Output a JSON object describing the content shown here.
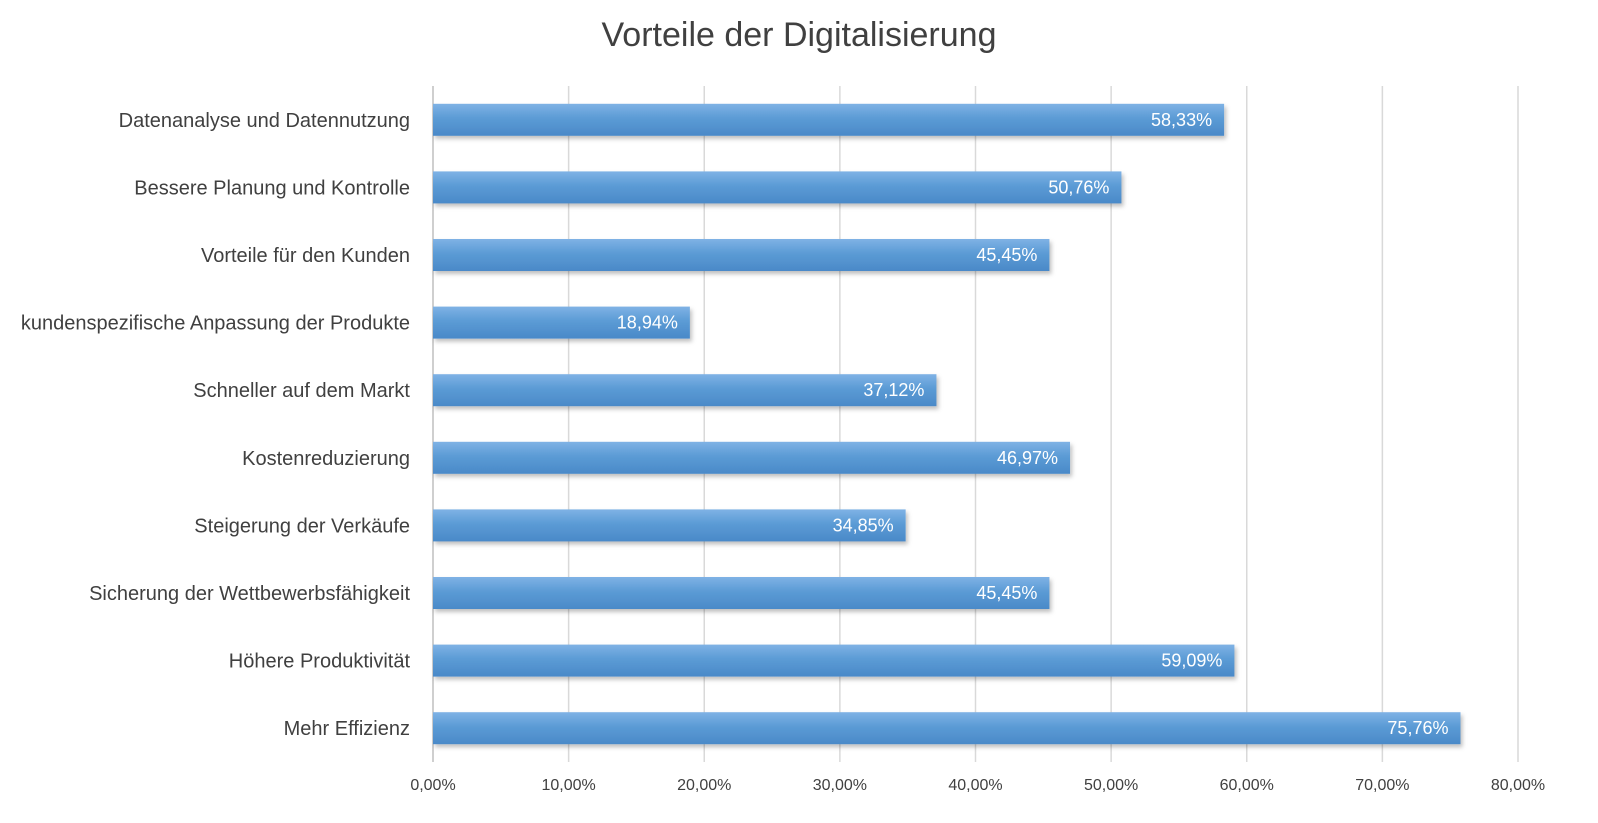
{
  "chart_data": {
    "type": "bar",
    "orientation": "horizontal",
    "title": "Vorteile der Digitalisierung",
    "xlabel": "",
    "ylabel": "",
    "categories": [
      "Datenanalyse und Datennutzung",
      "Bessere Planung und Kontrolle",
      "Vorteile für den Kunden",
      "kundenspezifische Anpassung der Produkte",
      "Schneller auf dem Markt",
      "Kostenreduzierung",
      "Steigerung der Verkäufe",
      "Sicherung der Wettbewerbsfähigkeit",
      "Höhere Produktivität",
      "Mehr Effizienz"
    ],
    "values": [
      58.33,
      50.76,
      45.45,
      18.94,
      37.12,
      46.97,
      34.85,
      45.45,
      59.09,
      75.76
    ],
    "value_labels": [
      "58,33%",
      "50,76%",
      "45,45%",
      "18,94%",
      "37,12%",
      "46,97%",
      "34,85%",
      "45,45%",
      "59,09%",
      "75,76%"
    ],
    "xlim": [
      0,
      80
    ],
    "x_ticks": [
      0,
      10,
      20,
      30,
      40,
      50,
      60,
      70,
      80
    ],
    "x_tick_labels": [
      "0,00%",
      "10,00%",
      "20,00%",
      "30,00%",
      "40,00%",
      "50,00%",
      "60,00%",
      "70,00%",
      "80,00%"
    ],
    "grid": true,
    "legend": "none",
    "colors": {
      "bar": "#5b9bd5",
      "bar_light": "#7fb2e5",
      "bar_dark": "#4a89c8",
      "text": "#404040",
      "grid": "#d9d9d9"
    }
  }
}
